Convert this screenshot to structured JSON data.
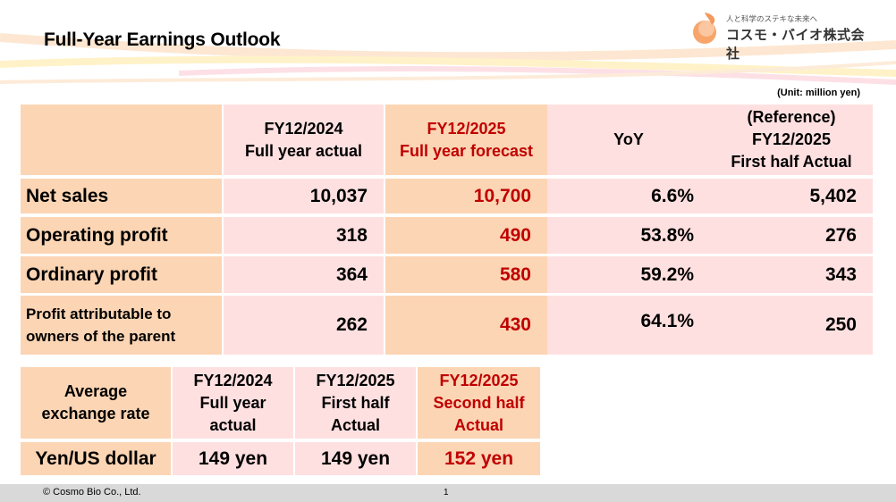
{
  "title": "Full-Year Earnings Outlook",
  "logo": {
    "tagline": "人と科学のステキな未来へ",
    "company": "コスモ・バイオ株式会社"
  },
  "unit": "(Unit: million yen)",
  "colors": {
    "header_peach": "#fcd5b4",
    "cell_pink": "#ffe0e0",
    "forecast_red": "#c00000",
    "footer_gray": "#d9d9d9"
  },
  "earnings_table": {
    "headers": {
      "fy2024": [
        "FY12/2024",
        "Full year actual"
      ],
      "fy2025": [
        "FY12/2025",
        "Full year forecast"
      ],
      "yoy": "YoY",
      "ref": [
        "(Reference)",
        "FY12/2025",
        "First half Actual"
      ]
    },
    "rows": [
      {
        "label": "Net sales",
        "fy2024": "10,037",
        "fy2025": "10,700",
        "yoy": "6.6%",
        "ref": "5,402"
      },
      {
        "label": "Operating profit",
        "fy2024": "318",
        "fy2025": "490",
        "yoy": "53.8%",
        "ref": "276"
      },
      {
        "label": "Ordinary profit",
        "fy2024": "364",
        "fy2025": "580",
        "yoy": "59.2%",
        "ref": "343"
      },
      {
        "label": [
          "Profit attributable to",
          "owners of the parent"
        ],
        "fy2024": "262",
        "fy2025": "430",
        "yoy": "64.1%",
        "ref": "250"
      }
    ]
  },
  "fx_table": {
    "header_label": [
      "Average",
      "exchange rate"
    ],
    "columns": [
      [
        "FY12/2024",
        "Full year",
        "actual"
      ],
      [
        "FY12/2025",
        "First half",
        "Actual"
      ],
      [
        "FY12/2025",
        "Second half",
        "Actual"
      ]
    ],
    "row_label": "Yen/US dollar",
    "values": [
      "149 yen",
      "149 yen",
      "152 yen"
    ]
  },
  "footer": {
    "copyright": "© Cosmo Bio Co., Ltd.",
    "page": "1"
  }
}
